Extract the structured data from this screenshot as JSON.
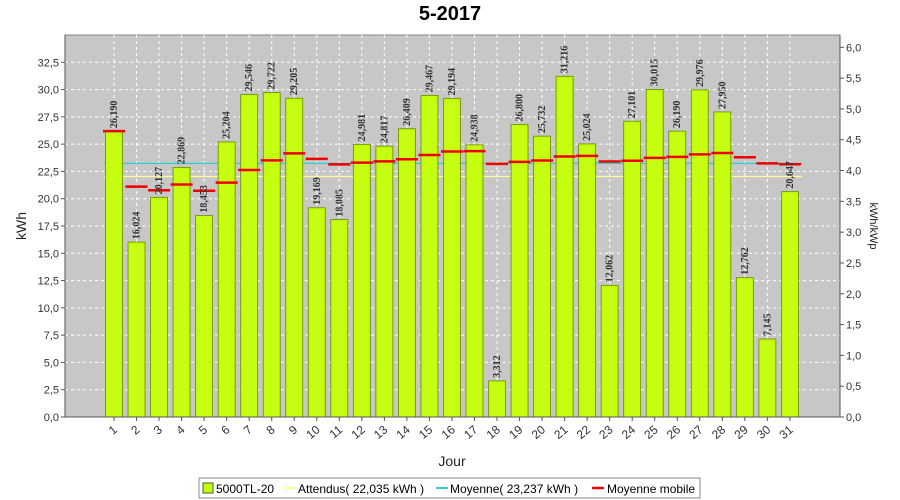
{
  "chart_data": {
    "type": "bar",
    "title": "5-2017",
    "xlabel": "Jour",
    "ylabel": "kWh",
    "y2label": "kWh/kWp",
    "ylim": [
      0,
      35
    ],
    "y2lim": [
      0,
      6.2
    ],
    "yticks": [
      "0,0",
      "2,5",
      "5,0",
      "7,5",
      "10,0",
      "12,5",
      "15,0",
      "17,5",
      "20,0",
      "22,5",
      "25,0",
      "27,5",
      "30,0",
      "32,5"
    ],
    "y2ticks": [
      "0,0",
      "0,5",
      "1,0",
      "1,5",
      "2,0",
      "2,5",
      "3,0",
      "3,5",
      "4,0",
      "4,5",
      "5,0",
      "5,5",
      "6,0"
    ],
    "categories": [
      "1",
      "2",
      "3",
      "4",
      "5",
      "6",
      "7",
      "8",
      "9",
      "10",
      "11",
      "12",
      "13",
      "14",
      "15",
      "16",
      "17",
      "18",
      "19",
      "20",
      "21",
      "22",
      "23",
      "24",
      "25",
      "26",
      "27",
      "28",
      "29",
      "30",
      "31"
    ],
    "series": [
      {
        "name": "5000TL-20",
        "color": "#bfff00",
        "values": [
          26.19,
          16.024,
          20.127,
          22.869,
          18.453,
          25.204,
          29.546,
          29.722,
          29.205,
          19.169,
          18.085,
          24.981,
          24.817,
          26.409,
          29.467,
          29.194,
          24.938,
          3.312,
          26.8,
          25.732,
          31.216,
          25.024,
          12.062,
          27.101,
          30.015,
          26.19,
          29.976,
          27.95,
          12.762,
          7.145,
          20.647
        ],
        "labels": [
          "26,190",
          "16,024",
          "20,127",
          "22,869",
          "18,453",
          "25,204",
          "29,546",
          "29,722",
          "29,205",
          "19,169",
          "18,085",
          "24,981",
          "24,817",
          "26,409",
          "29,467",
          "29,194",
          "24,938",
          "3,312",
          "26,800",
          "25,732",
          "31,216",
          "25,024",
          "12,062",
          "27,101",
          "30,015",
          "26,190",
          "29,976",
          "27,950",
          "12,762",
          "7,145",
          "20,647"
        ]
      },
      {
        "name": "Attendus( 22,035 kWh )",
        "color": "#ffff99",
        "value": 22.035
      },
      {
        "name": "Moyenne( 23,237 kWh )",
        "color": "#33cccc",
        "value": 23.237
      },
      {
        "name": "Moyenne mobile",
        "color": "#ee0000",
        "values": [
          26.19,
          21.107,
          20.78,
          21.303,
          20.733,
          21.478,
          22.631,
          23.518,
          24.15,
          23.652,
          23.146,
          23.301,
          23.416,
          23.615,
          24.006,
          24.329,
          24.36,
          23.189,
          23.379,
          23.497,
          23.867,
          23.92,
          23.405,
          23.478,
          23.739,
          23.833,
          24.06,
          24.19,
          23.797,
          23.241,
          23.159
        ]
      }
    ],
    "grid": true,
    "legend_position": "bottom"
  }
}
